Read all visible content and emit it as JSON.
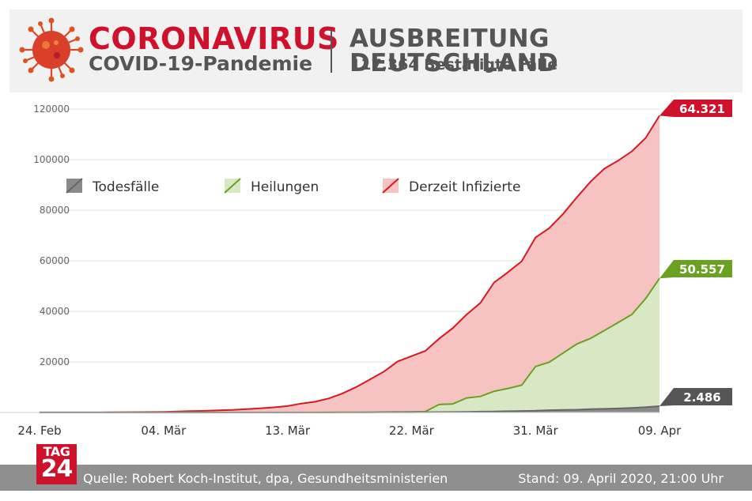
{
  "header": {
    "title": "CORONAVIRUS",
    "subtitle": "COVID-19-Pandemie",
    "right_title": "AUSBREITUNG DEUTSCHLAND",
    "right_subtitle": "117.364 Bestätigte Fälle"
  },
  "colors": {
    "brand_red": "#d0112b",
    "infected_line": "#d71920",
    "infected_fill": "#f6c3c2",
    "recovered_line": "#6aa121",
    "recovered_fill": "#d9e8c4",
    "deaths_line": "#666666",
    "deaths_fill": "#8a8a8a"
  },
  "chart_data": {
    "type": "area",
    "stacked": true,
    "x_labels": [
      "24. Feb",
      "04. Mär",
      "13. Mär",
      "22. Mär",
      "31. Mär",
      "09. Apr"
    ],
    "x_range": [
      "24. Feb",
      "09. Apr"
    ],
    "ylim": [
      0,
      120000
    ],
    "yticks": [
      20000,
      40000,
      60000,
      80000,
      100000,
      120000
    ],
    "grid": true,
    "legend_position": "top-left",
    "x": [
      "24. Feb",
      "25. Feb",
      "26. Feb",
      "27. Feb",
      "28. Feb",
      "29. Feb",
      "01. Mär",
      "02. Mär",
      "03. Mär",
      "04. Mär",
      "05. Mär",
      "06. Mär",
      "07. Mär",
      "08. Mär",
      "09. Mär",
      "10. Mär",
      "11. Mär",
      "12. Mär",
      "13. Mär",
      "14. Mär",
      "15. Mär",
      "16. Mär",
      "17. Mär",
      "18. Mär",
      "19. Mär",
      "20. Mär",
      "21. Mär",
      "22. Mär",
      "23. Mär",
      "24. Mär",
      "25. Mär",
      "26. Mär",
      "27. Mär",
      "28. Mär",
      "29. Mär",
      "30. Mär",
      "31. Mär",
      "01. Apr",
      "02. Apr",
      "03. Apr",
      "04. Apr",
      "05. Apr",
      "06. Apr",
      "07. Apr",
      "08. Apr",
      "09. Apr"
    ],
    "series": [
      {
        "name": "Todesfälle",
        "values": [
          0,
          0,
          0,
          0,
          0,
          0,
          0,
          0,
          0,
          0,
          0,
          0,
          0,
          0,
          2,
          2,
          3,
          5,
          8,
          10,
          12,
          15,
          20,
          30,
          40,
          60,
          80,
          100,
          130,
          160,
          200,
          260,
          330,
          420,
          500,
          600,
          700,
          900,
          1000,
          1100,
          1300,
          1450,
          1600,
          1800,
          2100,
          2486
        ]
      },
      {
        "name": "Heilungen",
        "values": [
          16,
          16,
          16,
          16,
          16,
          16,
          16,
          16,
          16,
          16,
          16,
          16,
          16,
          16,
          16,
          16,
          16,
          16,
          18,
          25,
          28,
          46,
          50,
          60,
          80,
          113,
          150,
          180,
          200,
          3000,
          3200,
          5500,
          6000,
          8000,
          9000,
          10200,
          17500,
          19000,
          22500,
          26000,
          28000,
          31000,
          34000,
          37000,
          43000,
          50557
        ]
      },
      {
        "name": "Derzeit Infizierte",
        "values": [
          0,
          0,
          0,
          1,
          10,
          40,
          110,
          140,
          180,
          240,
          380,
          510,
          650,
          850,
          1000,
          1300,
          1600,
          2000,
          2500,
          3500,
          4200,
          5500,
          7500,
          10000,
          13000,
          16000,
          20000,
          22000,
          24000,
          26000,
          30000,
          33000,
          37000,
          43000,
          46000,
          49000,
          51000,
          53000,
          55000,
          58000,
          62000,
          64000,
          64000,
          64500,
          63500,
          64321
        ]
      }
    ],
    "end_labels": {
      "infected": "64.321",
      "recovered": "50.557",
      "deaths": "2.486"
    }
  },
  "footer": {
    "source": "Quelle: Robert Koch-Institut, dpa, Gesundheitsministerien",
    "stand": "Stand: 09. April 2020, 21:00 Uhr",
    "logo_top": "TAG",
    "logo_bottom": "24"
  }
}
